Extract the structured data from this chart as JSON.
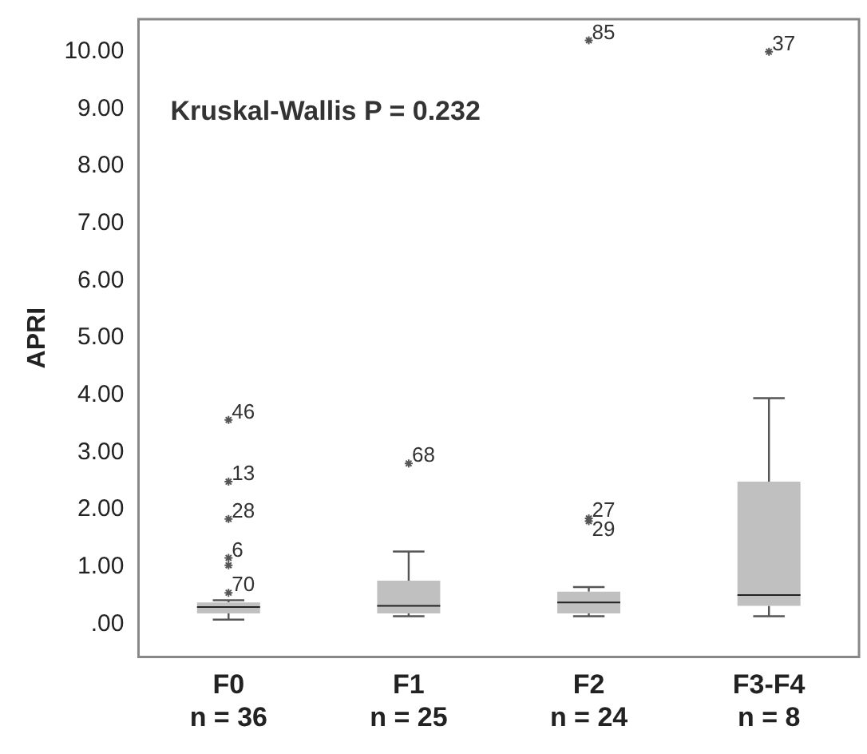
{
  "chart_data": {
    "type": "box",
    "ylabel": "APRI",
    "categories": [
      "F0 n = 36",
      "F1 n = 25",
      "F2 n = 24",
      "F3-F4 n = 8"
    ],
    "boxes": [
      {
        "low": 0.08,
        "q1": 0.19,
        "median": 0.3,
        "q3": 0.38,
        "high": 0.42
      },
      {
        "low": 0.14,
        "q1": 0.19,
        "median": 0.32,
        "q3": 0.76,
        "high": 1.27
      },
      {
        "low": 0.14,
        "q1": 0.19,
        "median": 0.38,
        "q3": 0.57,
        "high": 0.65
      },
      {
        "low": 0.14,
        "q1": 0.32,
        "median": 0.51,
        "q3": 2.49,
        "high": 3.95
      }
    ],
    "series": [
      {
        "type": "scatter",
        "color": "#555555",
        "x": [
          "F0 n = 36",
          "F0 n = 36",
          "F0 n = 36",
          "F0 n = 36",
          "F0 n = 36",
          "F0 n = 36",
          "F1 n = 25",
          "F2 n = 24",
          "F2 n = 24",
          "F2 n = 24",
          "F3-F4 n = 8"
        ],
        "values": [
          0.55,
          1.03,
          1.16,
          1.84,
          2.49,
          3.57,
          2.81,
          1.8,
          1.85,
          10.2,
          10.0
        ]
      }
    ],
    "color": "#c0c0c0",
    "marker": "cross",
    "ylim": [
      -0.57,
      10.57
    ],
    "yticks": [
      {
        "value": 0,
        "label": ".00"
      },
      {
        "value": 1,
        "label": "1.00"
      },
      {
        "value": 2,
        "label": "2.00"
      },
      {
        "value": 3,
        "label": "3.00"
      },
      {
        "value": 4,
        "label": "4.00"
      },
      {
        "value": 5,
        "label": "5.00"
      },
      {
        "value": 6,
        "label": "6.00"
      },
      {
        "value": 7,
        "label": "7.00"
      },
      {
        "value": 8,
        "label": "8.00"
      },
      {
        "value": 9,
        "label": "9.00"
      },
      {
        "value": 10,
        "label": "10.00"
      }
    ],
    "grid": false,
    "legend": false,
    "annotations": [
      "Kruskal-Wallis P = 0.232",
      {
        "text": "70",
        "x": "F0 n = 36",
        "y": 0.55
      },
      {
        "text": "6",
        "x": "F0 n = 36",
        "y": 1.16
      },
      {
        "text": "28",
        "x": "F0 n = 36",
        "y": 1.84
      },
      {
        "text": "13",
        "x": "F0 n = 36",
        "y": 2.49
      },
      {
        "text": "46",
        "x": "F0 n = 36",
        "y": 3.57
      },
      {
        "text": "68",
        "x": "F1 n = 25",
        "y": 2.81
      },
      {
        "text": "27",
        "x": "F2 n = 24",
        "y": 1.85
      },
      {
        "text": "29",
        "x": "F2 n = 24",
        "y": 1.8
      },
      {
        "text": "85",
        "x": "F2 n = 24",
        "y": 10.2
      },
      {
        "text": "37",
        "x": "F3-F4 n = 8",
        "y": 10.0
      }
    ]
  }
}
